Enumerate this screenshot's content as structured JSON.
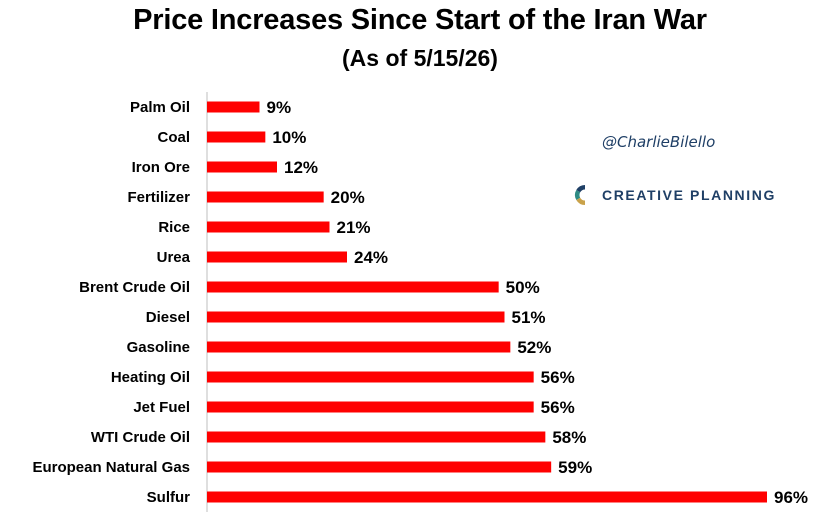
{
  "header": {
    "title": "Price Increases Since Start of the Iran War",
    "subtitle": "(As of 5/15/26)"
  },
  "branding": {
    "handle": "@CharlieBilello",
    "logo_text": "CREATIVE PLANNING",
    "logo_icon": "creative-planning-c-logo",
    "logo_colors": [
      "#1f3f66",
      "#2e8b84",
      "#c9a24a"
    ]
  },
  "chart_data": {
    "type": "bar",
    "orientation": "horizontal",
    "title": "Price Increases Since Start of the Iran War",
    "subtitle": "(As of 5/15/26)",
    "categories": [
      "Palm Oil",
      "Coal",
      "Iron Ore",
      "Fertilizer",
      "Rice",
      "Urea",
      "Brent Crude Oil",
      "Diesel",
      "Gasoline",
      "Heating Oil",
      "Jet Fuel",
      "WTI Crude Oil",
      "European Natural Gas",
      "Sulfur"
    ],
    "values": [
      9,
      10,
      12,
      20,
      21,
      24,
      50,
      51,
      52,
      56,
      56,
      58,
      59,
      96
    ],
    "value_labels": [
      "9%",
      "10%",
      "12%",
      "20%",
      "21%",
      "24%",
      "50%",
      "51%",
      "52%",
      "56%",
      "56%",
      "58%",
      "59%",
      "96%"
    ],
    "unit": "%",
    "xlim": [
      0,
      96
    ],
    "bar_color": "#ff0000",
    "grid": false,
    "legend": "none"
  }
}
